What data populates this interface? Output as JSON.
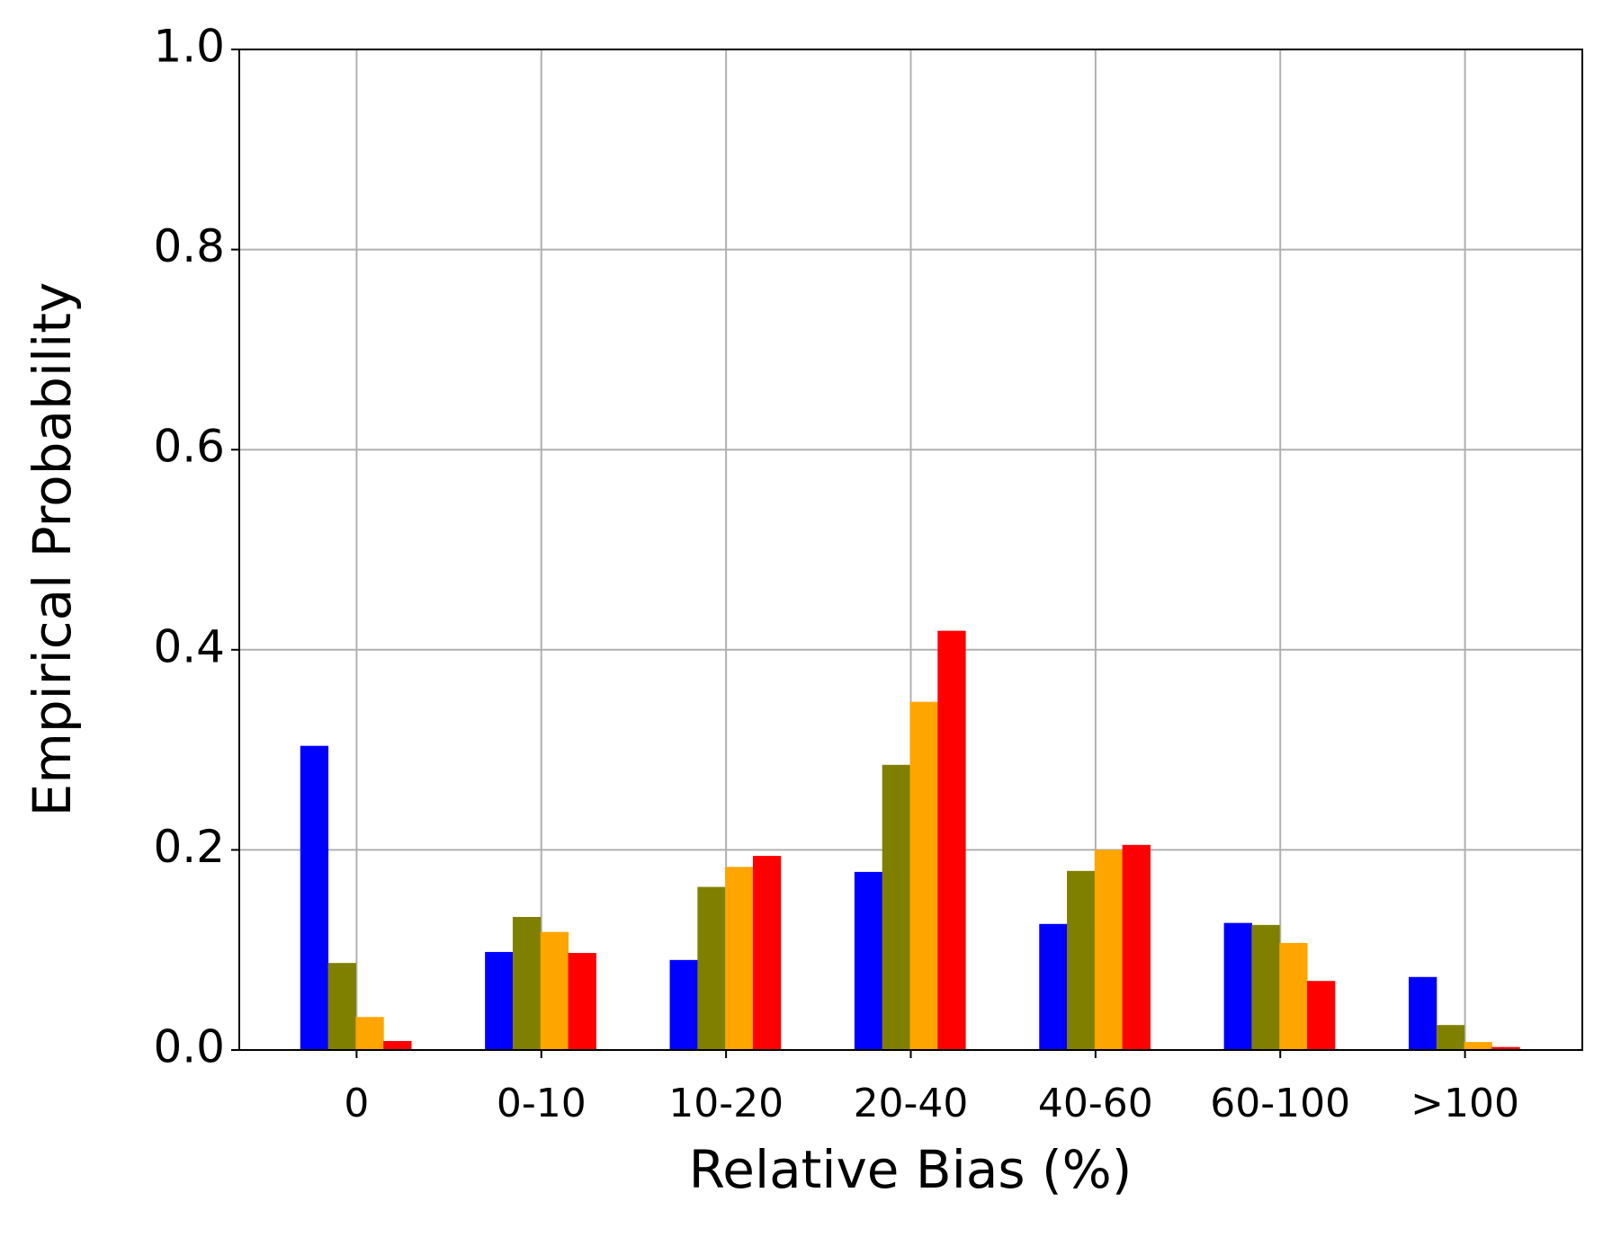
{
  "chart_data": {
    "type": "bar",
    "xlabel": "Relative Bias (%)",
    "ylabel": "Empirical Probability",
    "categories": [
      "0",
      "0-10",
      "10-20",
      "20-40",
      "40-60",
      "60-100",
      ">100"
    ],
    "series": [
      {
        "color": "#0000ff",
        "values": [
          0.304,
          0.098,
          0.09,
          0.178,
          0.126,
          0.127,
          0.073
        ]
      },
      {
        "color": "#808000",
        "values": [
          0.087,
          0.133,
          0.163,
          0.285,
          0.179,
          0.125,
          0.025
        ]
      },
      {
        "color": "#ffa500",
        "values": [
          0.033,
          0.118,
          0.183,
          0.348,
          0.2,
          0.107,
          0.008
        ]
      },
      {
        "color": "#ff0000",
        "values": [
          0.009,
          0.097,
          0.194,
          0.419,
          0.205,
          0.069,
          0.003
        ]
      }
    ],
    "ylim": [
      0,
      1.0
    ],
    "yticks": [
      {
        "value": 0,
        "label": "0.0"
      },
      {
        "value": 0.2,
        "label": "0.2"
      },
      {
        "value": 0.4,
        "label": "0.4"
      },
      {
        "value": 0.6,
        "label": "0.6"
      },
      {
        "value": 0.8,
        "label": "0.8"
      },
      {
        "value": 1.0,
        "label": "1.0"
      }
    ],
    "grid": true
  }
}
